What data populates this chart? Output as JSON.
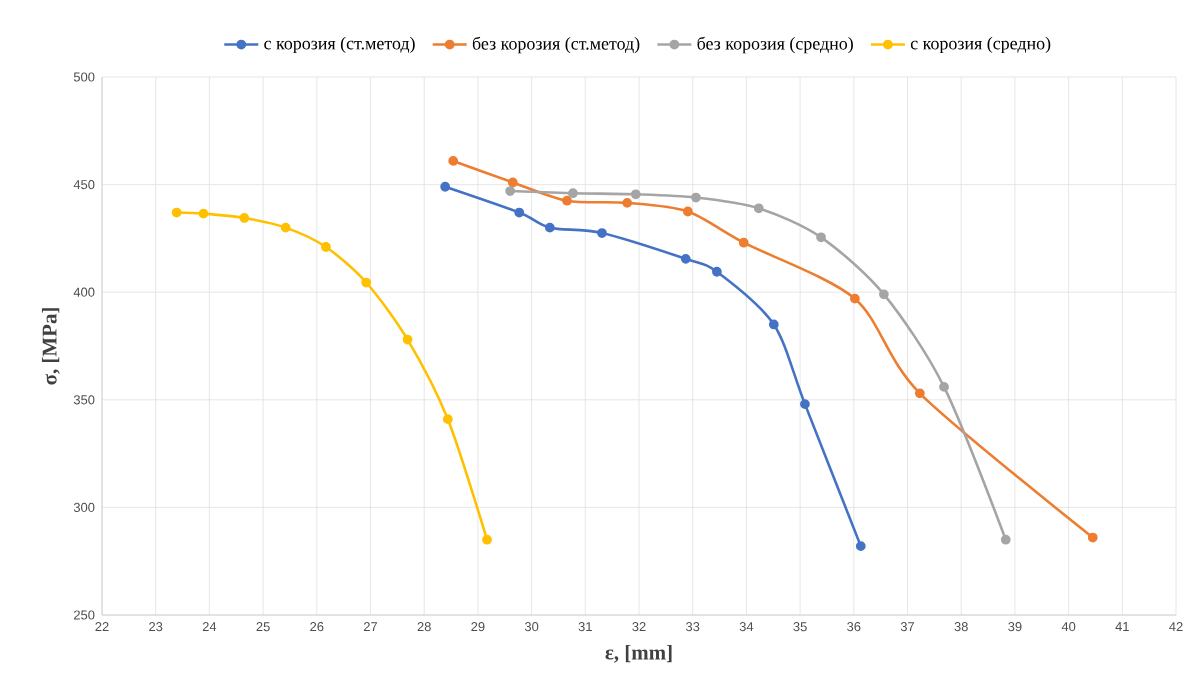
{
  "chart_data": {
    "type": "line",
    "xlabel": "ε, [mm]",
    "ylabel": "σ, [MPa]",
    "xlim": [
      22,
      42
    ],
    "xticks": [
      22,
      23,
      24,
      25,
      26,
      27,
      28,
      29,
      30,
      31,
      32,
      33,
      34,
      35,
      36,
      37,
      38,
      39,
      40,
      41,
      42
    ],
    "ylim": [
      250,
      500
    ],
    "yticks": [
      250,
      300,
      350,
      400,
      450,
      500
    ],
    "grid": true,
    "legend": "top",
    "marker": "circle",
    "line_style": "solid",
    "series": [
      {
        "name": "с корозия (ст.метод)",
        "color": "#4472c4",
        "x": [
          28.39,
          29.77,
          30.34,
          31.31,
          32.87,
          33.45,
          34.51,
          35.09,
          36.13
        ],
        "values": [
          449,
          437,
          430,
          427.5,
          415.5,
          409.5,
          385,
          348,
          282
        ]
      },
      {
        "name": "без корозия (ст.метод)",
        "color": "#ed7d31",
        "x": [
          28.54,
          29.65,
          30.66,
          31.78,
          32.91,
          33.95,
          36.02,
          37.23,
          40.45
        ],
        "values": [
          461,
          451,
          442.5,
          441.5,
          437.5,
          423,
          397,
          353,
          286
        ]
      },
      {
        "name": "без корозия (средно)",
        "color": "#a5a5a5",
        "x": [
          29.6,
          30.77,
          31.94,
          33.06,
          34.23,
          35.39,
          36.56,
          37.68,
          38.83
        ],
        "values": [
          447,
          446,
          445.5,
          444,
          439,
          425.5,
          399,
          356,
          285
        ]
      },
      {
        "name": "с корозия (средно)",
        "color": "#ffc000",
        "x": [
          23.39,
          23.89,
          24.65,
          25.42,
          26.17,
          26.92,
          27.69,
          28.44,
          29.17
        ],
        "values": [
          437,
          436.5,
          434.5,
          430,
          421,
          404.5,
          378,
          341,
          285
        ]
      }
    ]
  }
}
